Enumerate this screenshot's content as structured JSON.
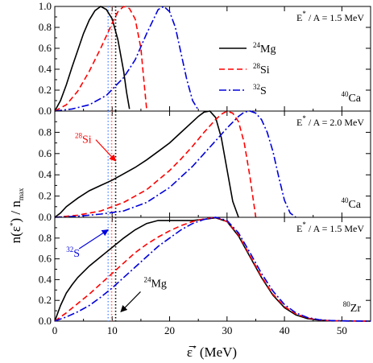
{
  "figure": {
    "ylabel_html": "n(&epsilon;<tspan class='sup' dy='-6'>*</tspan><tspan dy='6'>) / n</tspan><tspan class='sup' dy='4'>max</tspan>",
    "xlabel_html": "&epsilon;&#773;<tspan class='sup' dy='-7'>*</tspan><tspan dy='7'> (MeV)</tspan>"
  },
  "chart_data": [
    {
      "type": "line",
      "panel": "top",
      "note": "E* / A = 1.5 MeV",
      "target": "40Ca",
      "xlim": [
        0,
        55
      ],
      "ylim": [
        0,
        1.0
      ],
      "yticks": [
        0,
        0.2,
        0.4,
        0.6,
        0.8,
        1.0
      ],
      "ytick_labels": [
        "0.0",
        "0.2",
        "0.4",
        "0.6",
        "0.8",
        "1.0"
      ],
      "vlines": [
        {
          "x": 9.3,
          "color": "#6699ff"
        },
        {
          "x": 9.9,
          "color": "#ff6666"
        },
        {
          "x": 10.6,
          "color": "#000000"
        }
      ],
      "series": [
        {
          "name": "24Mg",
          "color": "#000000",
          "dash": "solid",
          "x": [
            0,
            1,
            2,
            3,
            4,
            5,
            6,
            7,
            8,
            9,
            10,
            11,
            12,
            12.5,
            13
          ],
          "y": [
            0,
            0.1,
            0.25,
            0.42,
            0.58,
            0.74,
            0.87,
            0.96,
            1.0,
            0.97,
            0.88,
            0.68,
            0.38,
            0.18,
            0.02
          ]
        },
        {
          "name": "28Si",
          "color": "#ff0000",
          "dash": "dashed",
          "x": [
            0,
            2,
            4,
            6,
            8,
            10,
            11,
            12,
            13,
            14,
            15,
            15.5,
            16
          ],
          "y": [
            0,
            0.06,
            0.19,
            0.38,
            0.6,
            0.84,
            0.95,
            1.0,
            0.98,
            0.88,
            0.6,
            0.3,
            0.02
          ]
        },
        {
          "name": "32S",
          "color": "#0000dd",
          "dash": "dashdot",
          "x": [
            0,
            3,
            6,
            9,
            12,
            14,
            16,
            18,
            19,
            20,
            21,
            22,
            23,
            24,
            25
          ],
          "y": [
            0,
            0.02,
            0.06,
            0.15,
            0.32,
            0.49,
            0.74,
            0.97,
            1.0,
            0.95,
            0.8,
            0.55,
            0.3,
            0.1,
            0.01
          ]
        }
      ]
    },
    {
      "type": "line",
      "panel": "middle",
      "note": "E* / A = 2.0 MeV",
      "target": "40Ca",
      "xlim": [
        0,
        55
      ],
      "ylim": [
        0,
        1.0
      ],
      "yticks": [
        0,
        0.2,
        0.4,
        0.6,
        0.8
      ],
      "ytick_labels": [
        "0.0",
        "0.2",
        "0.4",
        "0.6",
        "0.8"
      ],
      "vlines": [
        {
          "x": 9.3,
          "color": "#6699ff"
        },
        {
          "x": 9.9,
          "color": "#ff6666"
        },
        {
          "x": 10.6,
          "color": "#000000"
        }
      ],
      "annotation": {
        "label": "28Si",
        "color": "#ff0000",
        "text_x": 3.5,
        "text_y": 0.7,
        "arrow_to_x": 10.6,
        "arrow_to_y": 0.53
      },
      "series": [
        {
          "name": "24Mg",
          "color": "#000000",
          "dash": "solid",
          "x": [
            0,
            1,
            2,
            4,
            6,
            8,
            10,
            12,
            14,
            16,
            18,
            20,
            22,
            24,
            25,
            26,
            27,
            28,
            29,
            30,
            31,
            32
          ],
          "y": [
            0,
            0.04,
            0.1,
            0.18,
            0.25,
            0.3,
            0.35,
            0.41,
            0.47,
            0.54,
            0.62,
            0.7,
            0.8,
            0.9,
            0.95,
            0.99,
            1.0,
            0.94,
            0.75,
            0.45,
            0.15,
            0.0
          ]
        },
        {
          "name": "28Si",
          "color": "#ff0000",
          "dash": "dashed",
          "x": [
            0,
            4,
            8,
            12,
            16,
            20,
            22,
            24,
            26,
            28,
            29,
            30,
            31,
            32,
            33,
            34,
            35
          ],
          "y": [
            0,
            0.02,
            0.06,
            0.14,
            0.26,
            0.44,
            0.55,
            0.67,
            0.8,
            0.92,
            0.97,
            1.0,
            0.98,
            0.9,
            0.7,
            0.38,
            0.0
          ]
        },
        {
          "name": "32S",
          "color": "#0000dd",
          "dash": "dashdot",
          "x": [
            0,
            4,
            8,
            12,
            16,
            20,
            24,
            26,
            28,
            30,
            32,
            33,
            34,
            35,
            36,
            37,
            38,
            39,
            40,
            41,
            42
          ],
          "y": [
            0,
            0.01,
            0.03,
            0.06,
            0.14,
            0.28,
            0.48,
            0.6,
            0.72,
            0.84,
            0.95,
            0.99,
            1.0,
            0.98,
            0.92,
            0.8,
            0.62,
            0.38,
            0.16,
            0.04,
            0.0
          ]
        }
      ]
    },
    {
      "type": "line",
      "panel": "bottom",
      "note": "E* / A = 1.5 MeV",
      "target": "80Zr",
      "xlim": [
        0,
        55
      ],
      "ylim": [
        0,
        1.0
      ],
      "yticks": [
        0,
        0.2,
        0.4,
        0.6,
        0.8
      ],
      "ytick_labels": [
        "0.0",
        "0.2",
        "0.4",
        "0.6",
        "0.8"
      ],
      "xticks": [
        0,
        10,
        20,
        30,
        40,
        50
      ],
      "xtick_labels": [
        "0",
        "10",
        "20",
        "30",
        "40",
        "50"
      ],
      "vlines": [
        {
          "x": 9.3,
          "color": "#6699ff"
        },
        {
          "x": 9.9,
          "color": "#ff6666"
        },
        {
          "x": 10.6,
          "color": "#000000"
        }
      ],
      "annotations": [
        {
          "label": "32S",
          "color": "#0000dd",
          "text_x": 2.0,
          "text_y": 0.62,
          "arrow_to_x": 9.3,
          "arrow_to_y": 0.88
        },
        {
          "label": "24Mg",
          "color": "#000000",
          "text_x": 15.5,
          "text_y": 0.33,
          "arrow_to_x": 11.5,
          "arrow_to_y": 0.09
        }
      ],
      "series": [
        {
          "name": "24Mg",
          "color": "#000000",
          "dash": "solid",
          "x": [
            0,
            1,
            2,
            3,
            4,
            6,
            8,
            10,
            12,
            14,
            16,
            18,
            20,
            22,
            24,
            26,
            28,
            30,
            32,
            34,
            36,
            38,
            40,
            42,
            44,
            46,
            48,
            50,
            55
          ],
          "y": [
            0,
            0.15,
            0.27,
            0.35,
            0.42,
            0.53,
            0.62,
            0.71,
            0.8,
            0.88,
            0.94,
            0.97,
            0.97,
            0.97,
            0.97,
            0.98,
            0.995,
            0.96,
            0.82,
            0.62,
            0.42,
            0.25,
            0.13,
            0.06,
            0.025,
            0.01,
            0.004,
            0.002,
            0.0
          ]
        },
        {
          "name": "28Si",
          "color": "#ff0000",
          "dash": "dashed",
          "x": [
            0,
            2,
            4,
            6,
            8,
            10,
            12,
            14,
            16,
            18,
            20,
            22,
            24,
            26,
            28,
            30,
            32,
            34,
            36,
            38,
            40,
            42,
            44,
            46,
            48,
            50,
            55
          ],
          "y": [
            0,
            0.08,
            0.17,
            0.26,
            0.36,
            0.46,
            0.56,
            0.66,
            0.74,
            0.81,
            0.87,
            0.92,
            0.96,
            0.985,
            1.0,
            0.96,
            0.83,
            0.63,
            0.43,
            0.26,
            0.14,
            0.07,
            0.03,
            0.012,
            0.005,
            0.002,
            0.0
          ]
        },
        {
          "name": "32S",
          "color": "#0000dd",
          "dash": "dashdot",
          "x": [
            0,
            2,
            4,
            6,
            8,
            10,
            12,
            14,
            16,
            18,
            20,
            22,
            24,
            26,
            28,
            30,
            32,
            34,
            36,
            38,
            40,
            42,
            44,
            46,
            48,
            50,
            55
          ],
          "y": [
            0,
            0.04,
            0.09,
            0.15,
            0.23,
            0.32,
            0.42,
            0.52,
            0.62,
            0.72,
            0.8,
            0.88,
            0.94,
            0.98,
            1.0,
            0.97,
            0.85,
            0.66,
            0.46,
            0.29,
            0.16,
            0.08,
            0.035,
            0.014,
            0.006,
            0.002,
            0.0
          ]
        }
      ]
    }
  ]
}
